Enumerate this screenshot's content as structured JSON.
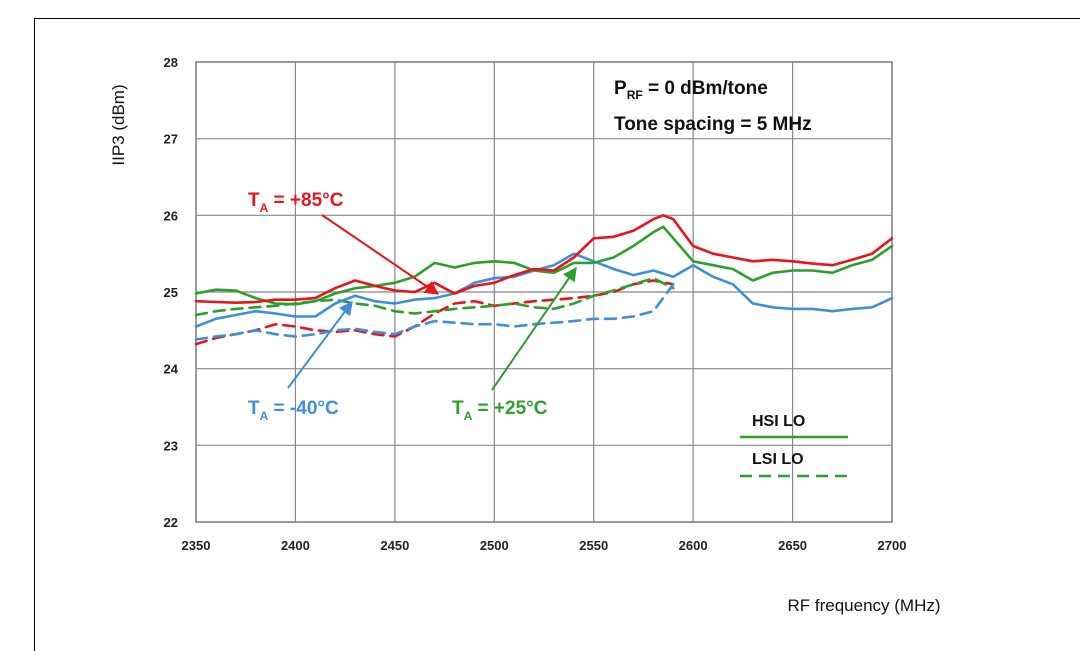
{
  "chart_data": {
    "type": "line",
    "xlabel": "RF frequency (MHz)",
    "ylabel": "IIP3 (dBm)",
    "xlim": [
      2350,
      2700
    ],
    "ylim": [
      22,
      28
    ],
    "xticks": [
      2350,
      2400,
      2450,
      2500,
      2550,
      2600,
      2650,
      2700
    ],
    "yticks": [
      22,
      23,
      24,
      25,
      26,
      27,
      28
    ],
    "grid": true,
    "annotation_lines": [
      {
        "p": "P",
        "sub": "RF",
        "rest": " = 0 dBm/tone"
      },
      {
        "text": "Tone spacing = 5 MHz"
      }
    ],
    "legend": {
      "placement": "bottom-right",
      "entries": [
        {
          "label": "HSI LO",
          "style": "solid",
          "color": "#2ca02c"
        },
        {
          "label": "LSI  LO",
          "style": "dashed",
          "color": "#2ca02c"
        }
      ]
    },
    "temperature_labels": [
      {
        "t": "T",
        "sub": "A",
        "rest": " = +85°C",
        "color": "#e8141b"
      },
      {
        "t": "T",
        "sub": "A",
        "rest": " = -40°C",
        "color": "#3d8fdc"
      },
      {
        "t": "T",
        "sub": "A",
        "rest": " = +25°C",
        "color": "#2ca02c"
      }
    ],
    "series": [
      {
        "temperature": "+85°C",
        "lo": "HSI",
        "style": "solid",
        "color": "#e8141b",
        "x": [
          2350,
          2360,
          2370,
          2380,
          2390,
          2400,
          2410,
          2420,
          2430,
          2440,
          2450,
          2460,
          2470,
          2480,
          2490,
          2500,
          2510,
          2520,
          2530,
          2540,
          2550,
          2560,
          2570,
          2580,
          2585,
          2590,
          2600,
          2610,
          2620,
          2630,
          2640,
          2650,
          2660,
          2670,
          2680,
          2690,
          2700
        ],
        "y": [
          24.88,
          24.87,
          24.86,
          24.87,
          24.9,
          24.9,
          24.92,
          25.05,
          25.15,
          25.08,
          25.02,
          25.0,
          25.12,
          24.98,
          25.08,
          25.12,
          25.22,
          25.3,
          25.28,
          25.45,
          25.7,
          25.72,
          25.8,
          25.95,
          26.0,
          25.95,
          25.6,
          25.5,
          25.45,
          25.4,
          25.42,
          25.4,
          25.37,
          25.35,
          25.42,
          25.5,
          25.7
        ]
      },
      {
        "temperature": "+25°C",
        "lo": "HSI",
        "style": "solid",
        "color": "#2ca02c",
        "x": [
          2350,
          2360,
          2370,
          2380,
          2390,
          2400,
          2410,
          2420,
          2430,
          2440,
          2450,
          2460,
          2470,
          2480,
          2490,
          2500,
          2510,
          2520,
          2530,
          2540,
          2550,
          2560,
          2570,
          2580,
          2585,
          2590,
          2600,
          2610,
          2620,
          2630,
          2640,
          2650,
          2660,
          2670,
          2680,
          2690,
          2700
        ],
        "y": [
          24.98,
          25.03,
          25.02,
          24.92,
          24.85,
          24.84,
          24.88,
          24.98,
          25.05,
          25.08,
          25.12,
          25.2,
          25.38,
          25.32,
          25.38,
          25.4,
          25.38,
          25.28,
          25.25,
          25.38,
          25.38,
          25.45,
          25.6,
          25.78,
          25.85,
          25.7,
          25.4,
          25.35,
          25.3,
          25.15,
          25.25,
          25.28,
          25.28,
          25.25,
          25.35,
          25.42,
          25.6
        ]
      },
      {
        "temperature": "-40°C",
        "lo": "HSI",
        "style": "solid",
        "color": "#3d8fdc",
        "x": [
          2350,
          2360,
          2370,
          2380,
          2390,
          2400,
          2410,
          2420,
          2430,
          2440,
          2450,
          2460,
          2470,
          2480,
          2490,
          2500,
          2510,
          2520,
          2530,
          2540,
          2550,
          2560,
          2570,
          2580,
          2590,
          2600,
          2610,
          2620,
          2630,
          2640,
          2650,
          2660,
          2670,
          2680,
          2690,
          2700
        ],
        "y": [
          24.55,
          24.65,
          24.7,
          24.75,
          24.72,
          24.68,
          24.68,
          24.85,
          24.95,
          24.88,
          24.85,
          24.9,
          24.92,
          24.98,
          25.12,
          25.18,
          25.2,
          25.28,
          25.35,
          25.5,
          25.4,
          25.3,
          25.22,
          25.28,
          25.2,
          25.35,
          25.2,
          25.1,
          24.85,
          24.8,
          24.78,
          24.78,
          24.75,
          24.78,
          24.8,
          24.92
        ]
      },
      {
        "temperature": "+85°C",
        "lo": "LSI",
        "style": "dashed",
        "color": "#e8141b",
        "x": [
          2350,
          2360,
          2370,
          2380,
          2390,
          2400,
          2410,
          2420,
          2430,
          2440,
          2450,
          2460,
          2470,
          2480,
          2490,
          2500,
          2510,
          2520,
          2530,
          2540,
          2550,
          2560,
          2570,
          2580,
          2590
        ],
        "y": [
          24.32,
          24.4,
          24.45,
          24.5,
          24.58,
          24.55,
          24.5,
          24.48,
          24.5,
          24.45,
          24.42,
          24.55,
          24.72,
          24.85,
          24.88,
          24.82,
          24.85,
          24.88,
          24.9,
          24.92,
          24.95,
          25.0,
          25.1,
          25.15,
          25.1
        ]
      },
      {
        "temperature": "+25°C",
        "lo": "LSI",
        "style": "dashed",
        "color": "#2ca02c",
        "x": [
          2350,
          2360,
          2370,
          2380,
          2390,
          2400,
          2410,
          2420,
          2430,
          2440,
          2450,
          2460,
          2470,
          2480,
          2490,
          2500,
          2510,
          2520,
          2530,
          2540,
          2550,
          2560,
          2570,
          2580,
          2590
        ],
        "y": [
          24.7,
          24.75,
          24.78,
          24.8,
          24.82,
          24.85,
          24.88,
          24.9,
          24.85,
          24.82,
          24.75,
          24.72,
          24.75,
          24.78,
          24.8,
          24.82,
          24.85,
          24.8,
          24.78,
          24.85,
          24.95,
          25.02,
          25.1,
          25.18,
          25.05
        ]
      },
      {
        "temperature": "-40°C",
        "lo": "LSI",
        "style": "dashed",
        "color": "#3d8fdc",
        "x": [
          2350,
          2360,
          2370,
          2380,
          2390,
          2400,
          2410,
          2420,
          2430,
          2440,
          2450,
          2460,
          2470,
          2480,
          2490,
          2500,
          2510,
          2520,
          2530,
          2540,
          2550,
          2560,
          2570,
          2580,
          2590
        ],
        "y": [
          24.38,
          24.42,
          24.45,
          24.5,
          24.45,
          24.42,
          24.45,
          24.5,
          24.52,
          24.48,
          24.45,
          24.55,
          24.62,
          24.6,
          24.58,
          24.58,
          24.55,
          24.58,
          24.6,
          24.62,
          24.65,
          24.65,
          24.68,
          24.75,
          25.1
        ]
      }
    ]
  }
}
